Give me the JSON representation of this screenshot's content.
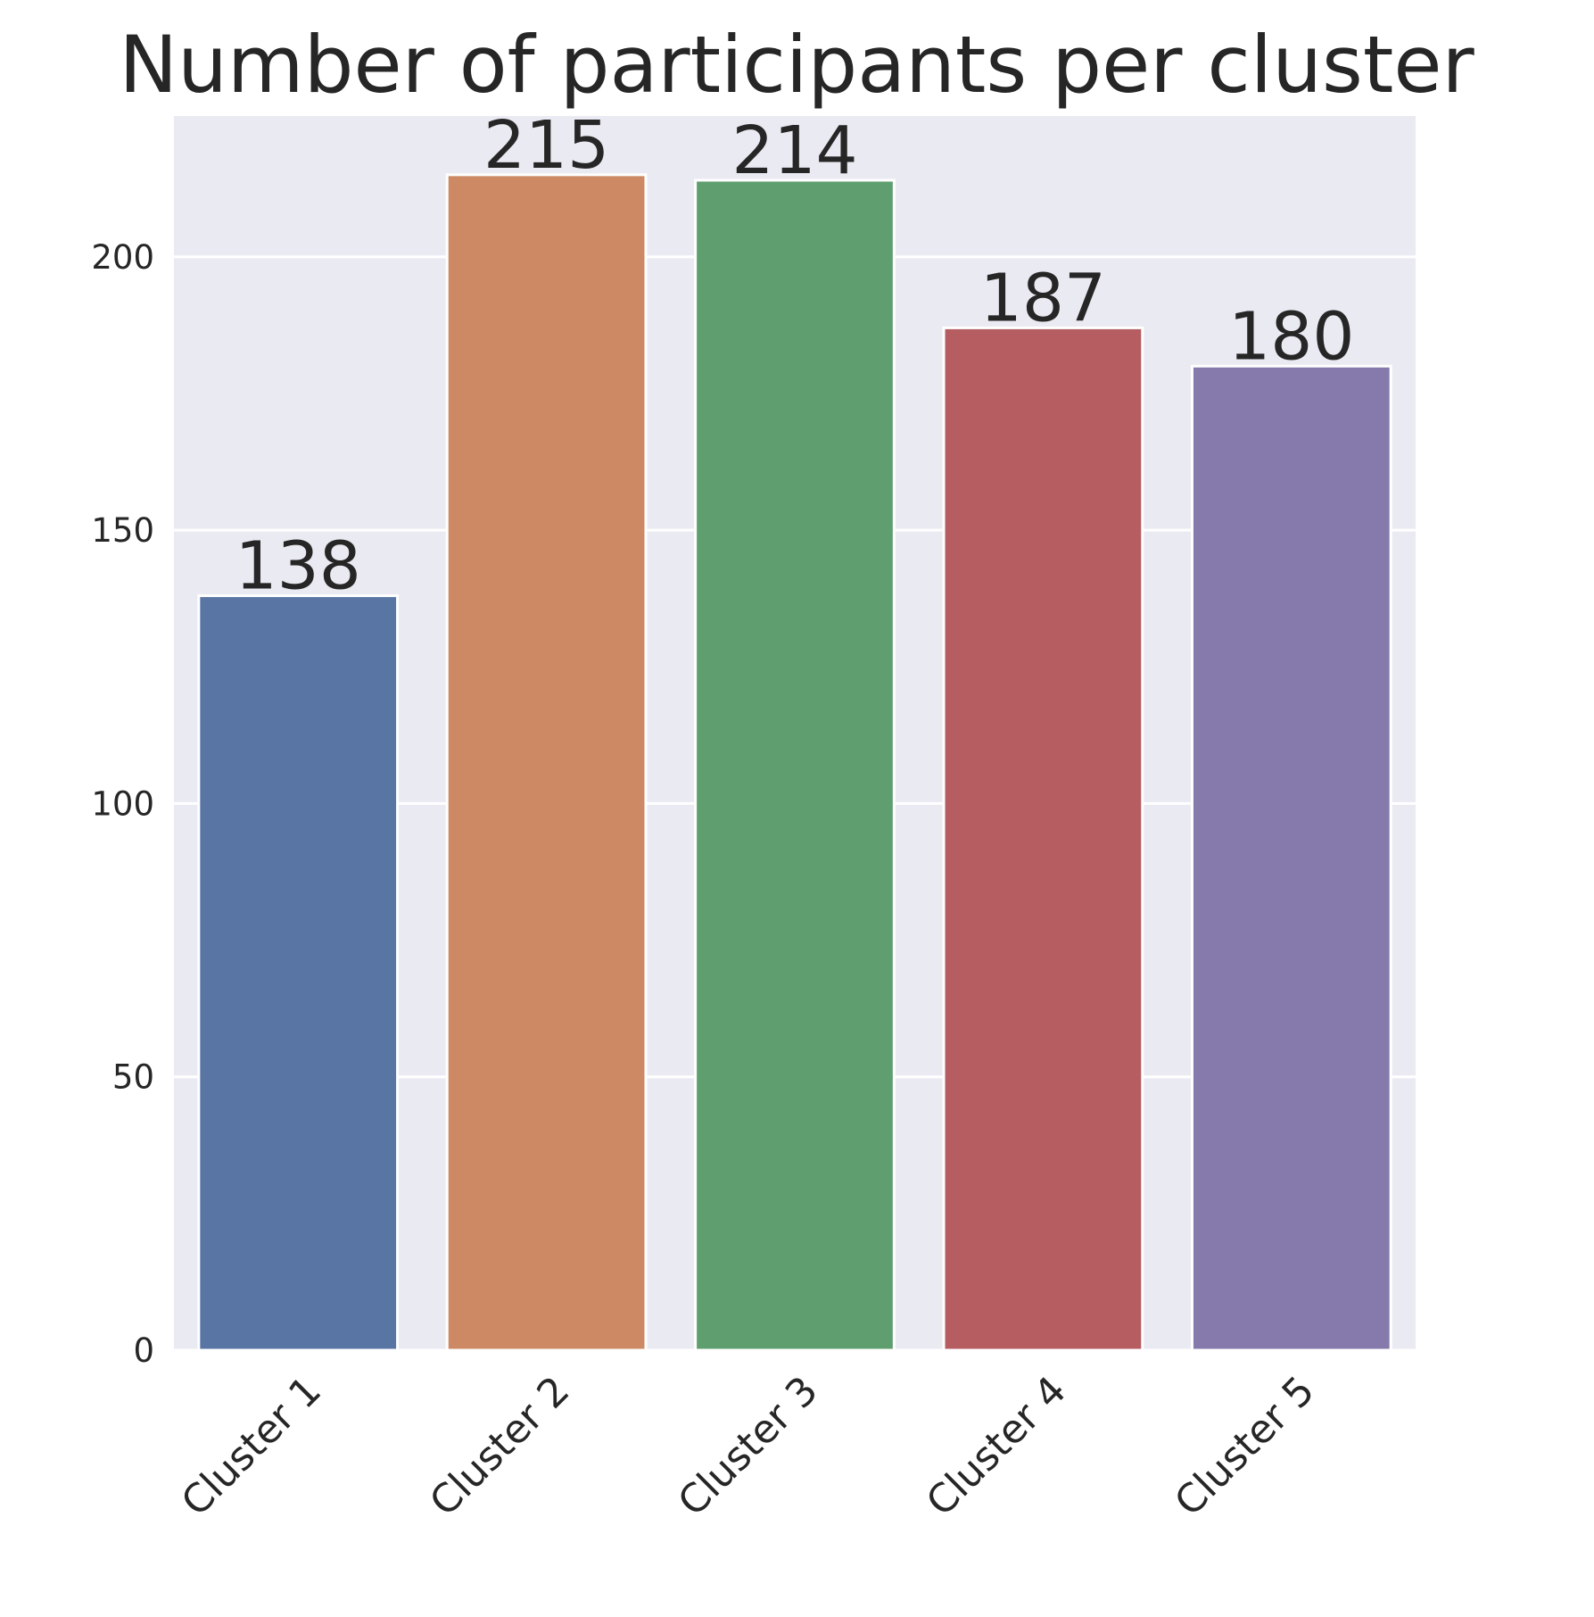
{
  "chart_data": {
    "type": "bar",
    "title": "Number of participants per cluster",
    "xlabel": "",
    "ylabel": "",
    "categories": [
      "Cluster 1",
      "Cluster 2",
      "Cluster 3",
      "Cluster 4",
      "Cluster 5"
    ],
    "values": [
      138,
      215,
      214,
      187,
      180
    ],
    "data_labels": [
      "138",
      "215",
      "214",
      "187",
      "180"
    ],
    "colors": [
      "#5975a4",
      "#cc8963",
      "#5f9e6e",
      "#b55d60",
      "#857aab"
    ],
    "ylim": [
      0,
      225.75
    ],
    "yticks": [
      0,
      50,
      100,
      150,
      200
    ],
    "ytick_labels": [
      "0",
      "50",
      "100",
      "150",
      "200"
    ],
    "grid": true,
    "legend": "none",
    "background_color": "#eaeaf2",
    "grid_color": "#ffffff"
  }
}
